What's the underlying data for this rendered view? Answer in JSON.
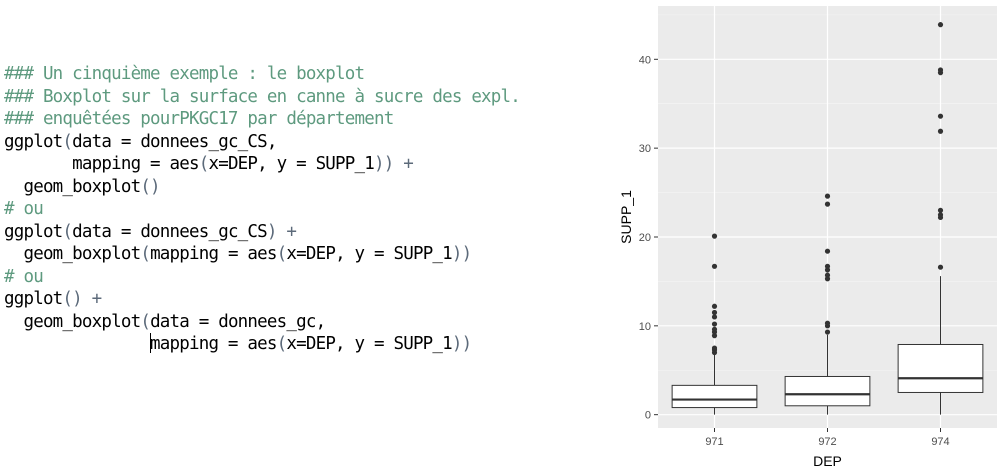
{
  "editor": {
    "lines": [
      {
        "type": "comment",
        "text": "### Un cinquième exemple : le boxplot"
      },
      {
        "type": "comment",
        "text": "### Boxplot sur la surface en canne à sucre des expl."
      },
      {
        "type": "comment",
        "text": "### enquêtées pourPKGC17 par département"
      },
      {
        "type": "code",
        "parts": [
          [
            "f",
            "ggplot"
          ],
          [
            "p",
            "("
          ],
          [
            "t",
            "data = donnees_gc_CS,"
          ]
        ]
      },
      {
        "type": "code",
        "parts": [
          [
            "t",
            "       mapping = aes"
          ],
          [
            "p",
            "("
          ],
          [
            "t",
            "x=DEP, y = SUPP_1"
          ],
          [
            "p",
            "))"
          ],
          [
            "t",
            " "
          ],
          [
            "o",
            "+"
          ]
        ]
      },
      {
        "type": "code",
        "parts": [
          [
            "t",
            "  geom_boxplot"
          ],
          [
            "p",
            "()"
          ]
        ]
      },
      {
        "type": "comment",
        "text": "# ou"
      },
      {
        "type": "code",
        "parts": [
          [
            "f",
            "ggplot"
          ],
          [
            "p",
            "("
          ],
          [
            "t",
            "data = donnees_gc_CS"
          ],
          [
            "p",
            ")"
          ],
          [
            "t",
            " "
          ],
          [
            "o",
            "+"
          ]
        ]
      },
      {
        "type": "code",
        "parts": [
          [
            "t",
            "  geom_boxplot"
          ],
          [
            "p",
            "("
          ],
          [
            "t",
            "mapping = aes"
          ],
          [
            "p",
            "("
          ],
          [
            "t",
            "x=DEP, y = SUPP_1"
          ],
          [
            "p",
            "))"
          ]
        ]
      },
      {
        "type": "comment",
        "text": "# ou"
      },
      {
        "type": "code",
        "parts": [
          [
            "f",
            "ggplot"
          ],
          [
            "p",
            "()"
          ],
          [
            "t",
            " "
          ],
          [
            "o",
            "+"
          ]
        ]
      },
      {
        "type": "code",
        "parts": [
          [
            "t",
            "  geom_boxplot"
          ],
          [
            "p",
            "("
          ],
          [
            "t",
            "data = donnees_gc,"
          ]
        ]
      },
      {
        "type": "code",
        "caret": true,
        "parts": [
          [
            "t",
            "               "
          ],
          [
            "c",
            ""
          ],
          [
            "t",
            "mapping = aes"
          ],
          [
            "p",
            "("
          ],
          [
            "t",
            "x=DEP, y = SUPP_1"
          ],
          [
            "p",
            "))"
          ]
        ]
      }
    ]
  },
  "chart_data": {
    "type": "boxplot",
    "xlabel": "DEP",
    "ylabel": "SUPP_1",
    "categories": [
      "971",
      "972",
      "974"
    ],
    "ylim": [
      -1.5,
      46
    ],
    "yticks": [
      0,
      10,
      20,
      30,
      40
    ],
    "grid": true,
    "colors": {
      "panel": "#ebebeb",
      "grid_major": "#ffffff",
      "grid_minor": "#f5f5f5",
      "box_fill": "#ffffff",
      "box_line": "#333333",
      "outlier": "#333333",
      "axis_text": "#4d4d4d",
      "axis_title": "#000000"
    },
    "boxes": [
      {
        "category": "971",
        "lower_whisker": 0,
        "q1": 0.8,
        "median": 1.7,
        "q3": 3.3,
        "upper_whisker": 6.9,
        "outliers": [
          7.0,
          7.3,
          7.5,
          8.9,
          9.3,
          9.6,
          10.2,
          11.0,
          11.5,
          12.2,
          16.7,
          20.1
        ]
      },
      {
        "category": "972",
        "lower_whisker": 0,
        "q1": 1.0,
        "median": 2.3,
        "q3": 4.3,
        "upper_whisker": 9.0,
        "outliers": [
          9.3,
          10.0,
          10.3,
          15.3,
          15.7,
          16.3,
          16.7,
          18.4,
          23.7,
          24.6
        ]
      },
      {
        "category": "974",
        "lower_whisker": 0,
        "q1": 2.5,
        "median": 4.1,
        "q3": 7.9,
        "upper_whisker": 15.6,
        "outliers": [
          16.6,
          22.2,
          22.5,
          23.0,
          31.9,
          33.6,
          38.5,
          38.8,
          43.9
        ]
      }
    ]
  }
}
